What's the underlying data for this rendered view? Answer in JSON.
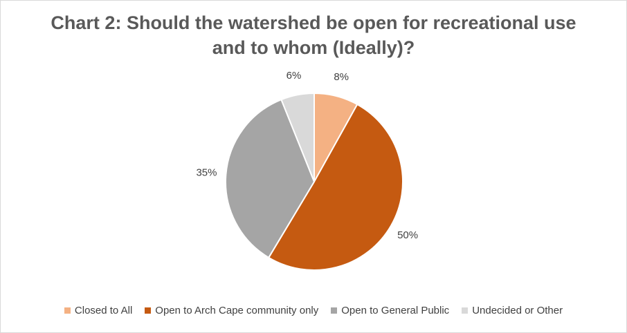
{
  "chart_data": {
    "type": "pie",
    "title": "Chart 2: Should the watershed be open for recreational use\nand to whom (Ideally)?",
    "legend_position": "bottom",
    "slices": [
      {
        "label": "Closed to All",
        "value": 8,
        "display": "8%",
        "color": "#F4B183"
      },
      {
        "label": "Open to Arch Cape community only",
        "value": 50,
        "display": "50%",
        "color": "#C55A11"
      },
      {
        "label": "Open to General Public",
        "value": 35,
        "display": "35%",
        "color": "#A5A5A5"
      },
      {
        "label": "Undecided or Other",
        "value": 6,
        "display": "6%",
        "color": "#D9D9D9"
      }
    ]
  }
}
